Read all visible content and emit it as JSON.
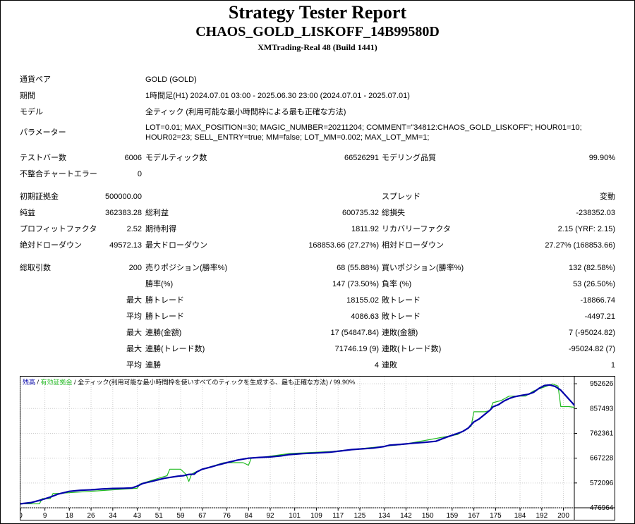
{
  "header": {
    "title": "Strategy Tester Report",
    "expert": "CHAOS_GOLD_LISKOFF_14B99580D",
    "server": "XMTrading-Real 48 (Build 1441)"
  },
  "settings": {
    "symbol_label": "通貨ペア",
    "symbol_value": "GOLD (GOLD)",
    "period_label": "期間",
    "period_value": "1時間足(H1) 2024.07.01 03:00 - 2025.06.30 23:00 (2024.07.01 - 2025.07.01)",
    "model_label": "モデル",
    "model_value": "全ティック (利用可能な最小時間枠による最も正確な方法)",
    "params_label": "パラメーター",
    "params_value": "LOT=0.01; MAX_POSITION=30; MAGIC_NUMBER=20211204; COMMENT=\"34812:CHAOS_GOLD_LISKOFF\"; HOUR01=10; HOUR02=23; SELL_ENTRY=true; MM=false; LOT_MM=0.002; MAX_LOT_MM=1;"
  },
  "modeling": {
    "bars_label": "テストバー数",
    "bars_value": "6006",
    "ticks_label": "モデルティック数",
    "ticks_value": "66526291",
    "quality_label": "モデリング品質",
    "quality_value": "99.90%",
    "errors_label": "不整合チャートエラー",
    "errors_value": "0"
  },
  "results": {
    "deposit_label": "初期証拠金",
    "deposit_value": "500000.00",
    "spread_label": "スプレッド",
    "spread_value": "変動",
    "net_label": "純益",
    "net_value": "362383.28",
    "gross_profit_label": "総利益",
    "gross_profit_value": "600735.32",
    "gross_loss_label": "総損失",
    "gross_loss_value": "-238352.03",
    "pf_label": "プロフィットファクタ",
    "pf_value": "2.52",
    "payoff_label": "期待利得",
    "payoff_value": "1811.92",
    "recovery_label": "リカバリーファクタ",
    "recovery_value": "2.15 (YRF: 2.15)",
    "abs_dd_label": "絶対ドローダウン",
    "abs_dd_value": "49572.13",
    "max_dd_label": "最大ドローダウン",
    "max_dd_value": "168853.66 (27.27%)",
    "rel_dd_label": "相対ドローダウン",
    "rel_dd_value": "27.27% (168853.66)"
  },
  "trades": {
    "total_label": "総取引数",
    "total_value": "200",
    "short_label": "売りポジション(勝率%)",
    "short_value": "68 (55.88%)",
    "long_label": "買いポジション(勝率%)",
    "long_value": "132 (82.58%)",
    "win_rate_label": "勝率(%)",
    "win_rate_value": "147 (73.50%)",
    "loss_rate_label": "負率 (%)",
    "loss_rate_value": "53 (26.50%)",
    "max_word": "最大",
    "avg_word": "平均",
    "largest_win_label": "勝トレード",
    "largest_win_value": "18155.02",
    "largest_loss_label": "敗トレード",
    "largest_loss_value": "-18866.74",
    "avg_win_label": "勝トレード",
    "avg_win_value": "4086.63",
    "avg_loss_label": "敗トレード",
    "avg_loss_value": "-4497.21",
    "max_cons_win_label": "連勝(金額)",
    "max_cons_win_value": "17 (54847.84)",
    "max_cons_loss_label": "連敗(金額)",
    "max_cons_loss_value": "7 (-95024.82)",
    "max_cons_profit_label": "連勝(トレード数)",
    "max_cons_profit_value": "71746.19 (9)",
    "max_cons_lossamt_label": "連敗(トレード数)",
    "max_cons_lossamt_value": "-95024.82 (7)",
    "avg_cons_win_label": "連勝",
    "avg_cons_win_value": "4",
    "avg_cons_loss_label": "連敗",
    "avg_cons_loss_value": "1"
  },
  "chart_data": {
    "type": "line",
    "legend": {
      "balance": "残高",
      "sep1": " / ",
      "equity": "有効証拠金",
      "sep2": " / ",
      "model": "全ティック(利用可能な最小時間枠を使いすべてのティックを生成する、最も正確な方法)",
      "quality": " / 99.90%"
    },
    "colors": {
      "balance": "#0000aa",
      "equity": "#22bb22",
      "grid": "#cccccc",
      "axis": "#000000"
    },
    "xlim": [
      0,
      204
    ],
    "ylim": [
      476964,
      980000
    ],
    "x_ticks": [
      "0",
      "9",
      "18",
      "26",
      "34",
      "43",
      "51",
      "59",
      "67",
      "76",
      "84",
      "92",
      "101",
      "109",
      "117",
      "125",
      "134",
      "142",
      "150",
      "159",
      "167",
      "175",
      "184",
      "192",
      "200"
    ],
    "y_ticks": [
      "952626",
      "857493",
      "762361",
      "667228",
      "572096",
      "476964"
    ],
    "series": [
      {
        "key": "balance",
        "points": [
          [
            0,
            492000
          ],
          [
            4,
            497000
          ],
          [
            8,
            508000
          ],
          [
            11,
            518000
          ],
          [
            14,
            530000
          ],
          [
            18,
            540000
          ],
          [
            22,
            544000
          ],
          [
            26,
            546000
          ],
          [
            30,
            549000
          ],
          [
            34,
            551000
          ],
          [
            38,
            552000
          ],
          [
            41,
            553000
          ],
          [
            43,
            560000
          ],
          [
            45,
            570000
          ],
          [
            49,
            580000
          ],
          [
            53,
            590000
          ],
          [
            58,
            598000
          ],
          [
            60,
            600000
          ],
          [
            62,
            605000
          ],
          [
            64,
            606000
          ],
          [
            65,
            615000
          ],
          [
            67,
            625000
          ],
          [
            70,
            633000
          ],
          [
            73,
            642000
          ],
          [
            76,
            650000
          ],
          [
            78,
            655000
          ],
          [
            80,
            660000
          ],
          [
            84,
            667000
          ],
          [
            88,
            670000
          ],
          [
            92,
            672000
          ],
          [
            96,
            676000
          ],
          [
            99,
            681000
          ],
          [
            104,
            685000
          ],
          [
            109,
            687000
          ],
          [
            114,
            690000
          ],
          [
            118,
            695000
          ],
          [
            122,
            700000
          ],
          [
            126,
            703000
          ],
          [
            130,
            706000
          ],
          [
            134,
            712000
          ],
          [
            136,
            717000
          ],
          [
            140,
            720000
          ],
          [
            145,
            725000
          ],
          [
            149,
            728000
          ],
          [
            153,
            732000
          ],
          [
            155,
            740000
          ],
          [
            157,
            748000
          ],
          [
            159,
            755000
          ],
          [
            161,
            762000
          ],
          [
            163,
            770000
          ],
          [
            165,
            783000
          ],
          [
            166,
            795000
          ],
          [
            167,
            806000
          ],
          [
            169,
            818000
          ],
          [
            171,
            835000
          ],
          [
            173,
            852000
          ],
          [
            174,
            864000
          ],
          [
            176,
            872000
          ],
          [
            178,
            886000
          ],
          [
            180,
            896000
          ],
          [
            182,
            903000
          ],
          [
            185,
            909000
          ],
          [
            187,
            912000
          ],
          [
            189,
            920000
          ],
          [
            191,
            935000
          ],
          [
            193,
            946000
          ],
          [
            195,
            948000
          ],
          [
            197,
            942000
          ],
          [
            199,
            928000
          ],
          [
            201,
            905000
          ],
          [
            203,
            882000
          ],
          [
            204,
            870000
          ]
        ]
      },
      {
        "key": "equity",
        "points": [
          [
            0,
            492000
          ],
          [
            7,
            492000
          ],
          [
            8,
            512000
          ],
          [
            11,
            512000
          ],
          [
            12,
            532000
          ],
          [
            14,
            532000
          ],
          [
            43,
            552000
          ],
          [
            44,
            568000
          ],
          [
            54,
            600000
          ],
          [
            55,
            625000
          ],
          [
            59,
            625000
          ],
          [
            61,
            605000
          ],
          [
            62,
            578000
          ],
          [
            63,
            605000
          ],
          [
            64,
            612000
          ],
          [
            67,
            625000
          ],
          [
            75,
            650000
          ],
          [
            82,
            650000
          ],
          [
            84,
            640000
          ],
          [
            85,
            667000
          ],
          [
            90,
            672000
          ],
          [
            99,
            685000
          ],
          [
            115,
            693000
          ],
          [
            141,
            720000
          ],
          [
            161,
            758000
          ],
          [
            163,
            770000
          ],
          [
            166,
            790000
          ],
          [
            167,
            845000
          ],
          [
            171,
            845000
          ],
          [
            173,
            850000
          ],
          [
            174,
            880000
          ],
          [
            177,
            888000
          ],
          [
            180,
            905000
          ],
          [
            186,
            905000
          ],
          [
            189,
            925000
          ],
          [
            196,
            952000
          ],
          [
            198,
            944000
          ],
          [
            199,
            865000
          ],
          [
            202,
            865000
          ],
          [
            204,
            862000
          ]
        ]
      }
    ]
  }
}
